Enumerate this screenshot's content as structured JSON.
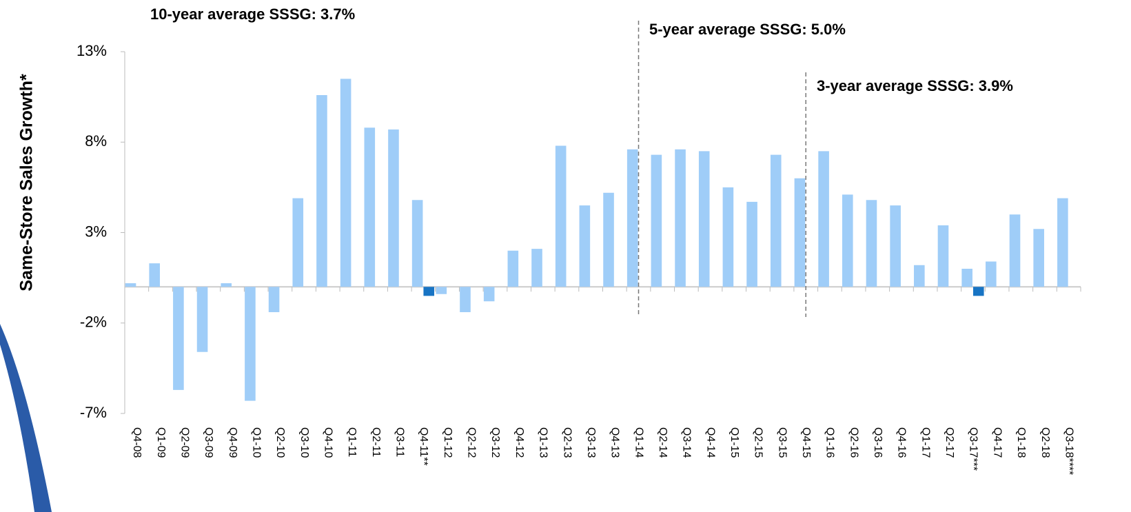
{
  "chart_data": {
    "type": "bar",
    "y_label": "Same-Store Sales Growth*",
    "annotations": [
      "10-year average SSSG: 3.7%",
      "5-year average SSSG: 5.0%",
      "3-year average SSSG: 3.9%"
    ],
    "categories": [
      "Q4-08",
      "Q1-09",
      "Q2-09",
      "Q3-09",
      "Q4-09",
      "Q1-10",
      "Q2-10",
      "Q3-10",
      "Q4-10",
      "Q1-11",
      "Q2-11",
      "Q3-11",
      "Q4-11**",
      "Q1-12",
      "Q2-12",
      "Q3-12",
      "Q4-12",
      "Q1-13",
      "Q2-13",
      "Q3-13",
      "Q4-13",
      "Q1-14",
      "Q2-14",
      "Q3-14",
      "Q4-14",
      "Q1-15",
      "Q2-15",
      "Q3-15",
      "Q4-15",
      "Q1-16",
      "Q2-16",
      "Q3-16",
      "Q4-16",
      "Q1-17",
      "Q2-17",
      "Q3-17***",
      "Q4-17",
      "Q1-18",
      "Q2-18",
      "Q3-18****"
    ],
    "series": [
      {
        "color": "#9fcdf8",
        "values": [
          0.2,
          1.3,
          -5.7,
          -3.6,
          0.2,
          -6.3,
          -1.4,
          4.9,
          10.6,
          11.5,
          8.8,
          8.7,
          4.8,
          -0.4,
          -1.4,
          -0.8,
          2.0,
          2.1,
          7.8,
          4.5,
          5.2,
          7.6,
          7.3,
          7.6,
          7.5,
          5.5,
          4.7,
          7.3,
          6.0,
          7.5,
          5.1,
          4.8,
          4.5,
          1.2,
          3.4,
          1.0,
          1.4,
          4.0,
          3.2,
          4.9
        ]
      },
      {
        "color": "#1874c4",
        "values": [
          null,
          null,
          null,
          null,
          null,
          null,
          null,
          null,
          null,
          null,
          null,
          null,
          -0.5,
          null,
          null,
          null,
          null,
          null,
          null,
          null,
          null,
          null,
          null,
          null,
          null,
          null,
          null,
          null,
          null,
          null,
          null,
          null,
          null,
          null,
          null,
          -0.5,
          null,
          null,
          null,
          null
        ]
      }
    ],
    "ylim": [
      -7,
      13
    ],
    "yticks": [
      {
        "value": -7,
        "label": "-7%"
      },
      {
        "value": -2,
        "label": "-2%"
      },
      {
        "value": 3,
        "label": "3%"
      },
      {
        "value": 8,
        "label": "8%"
      },
      {
        "value": 13,
        "label": "13%"
      }
    ]
  }
}
